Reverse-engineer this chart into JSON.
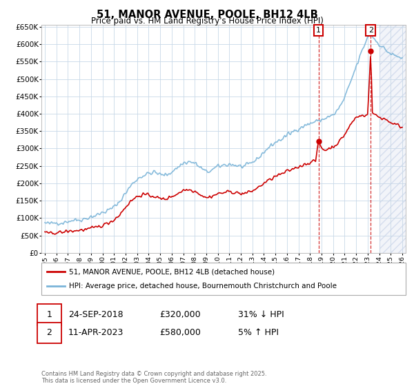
{
  "title": "51, MANOR AVENUE, POOLE, BH12 4LB",
  "subtitle": "Price paid vs. HM Land Registry's House Price Index (HPI)",
  "ylabel_ticks": [
    "£0",
    "£50K",
    "£100K",
    "£150K",
    "£200K",
    "£250K",
    "£300K",
    "£350K",
    "£400K",
    "£450K",
    "£500K",
    "£550K",
    "£600K",
    "£650K"
  ],
  "ytick_values": [
    0,
    50000,
    100000,
    150000,
    200000,
    250000,
    300000,
    350000,
    400000,
    450000,
    500000,
    550000,
    600000,
    650000
  ],
  "hpi_color": "#7ab4d8",
  "price_color": "#cc0000",
  "dashed_line_color": "#cc0000",
  "background_color": "#ffffff",
  "grid_color": "#c8d8e8",
  "legend_label_red": "51, MANOR AVENUE, POOLE, BH12 4LB (detached house)",
  "legend_label_blue": "HPI: Average price, detached house, Bournemouth Christchurch and Poole",
  "sale1_date": "24-SEP-2018",
  "sale1_price": "£320,000",
  "sale1_note": "31% ↓ HPI",
  "sale2_date": "11-APR-2023",
  "sale2_price": "£580,000",
  "sale2_note": "5% ↑ HPI",
  "footer": "Contains HM Land Registry data © Crown copyright and database right 2025.\nThis data is licensed under the Open Government Licence v3.0.",
  "xmin": 1995,
  "xmax": 2026,
  "ymin": 0,
  "ymax": 650000,
  "sale1_year": 2018.73,
  "sale1_price_val": 320000,
  "sale2_year": 2023.27,
  "sale2_price_val": 580000,
  "hatched_region_start": 2024.0
}
